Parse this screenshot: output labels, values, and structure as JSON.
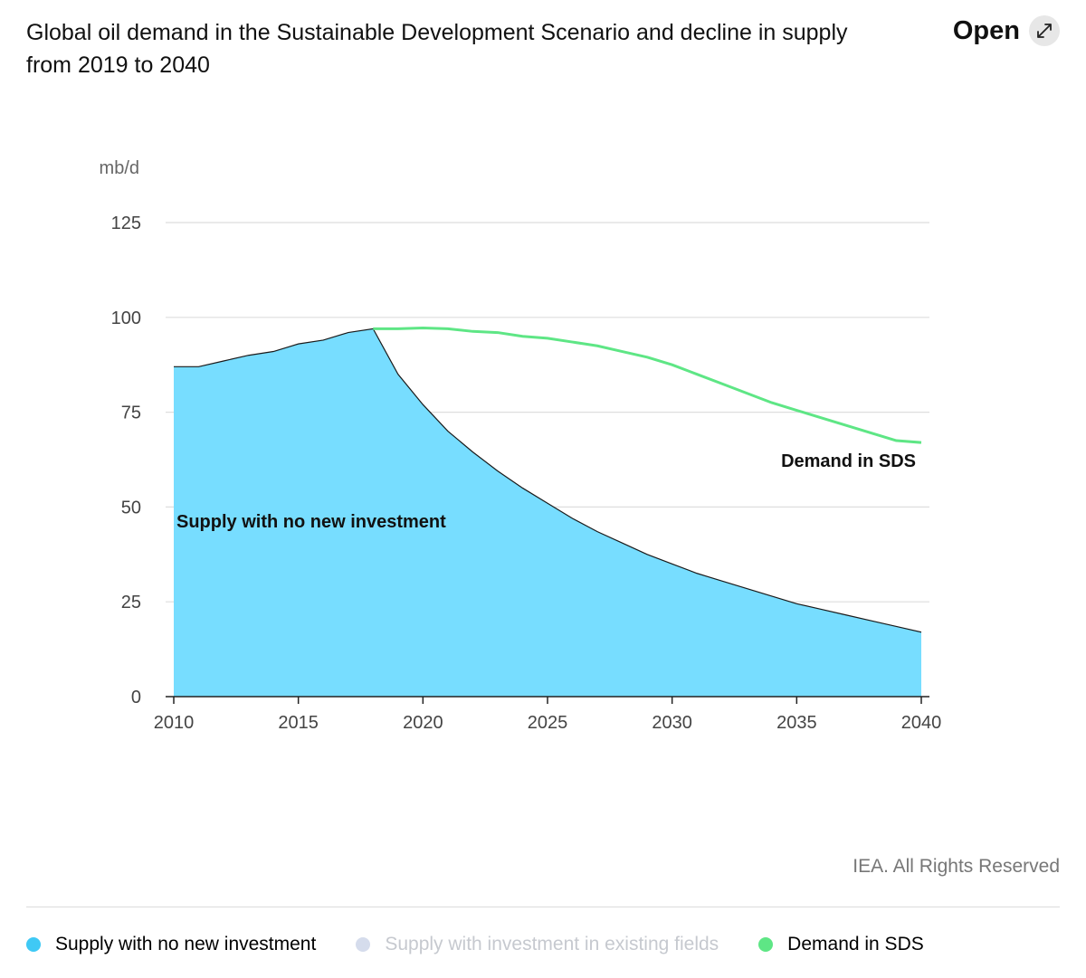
{
  "header": {
    "title": "Global oil demand in the Sustainable Development Scenario and decline in supply from 2019 to 2040",
    "open_label": "Open"
  },
  "footer": {
    "credit": "IEA. All Rights Reserved"
  },
  "legend": [
    {
      "label": "Supply with no new investment",
      "color": "#3fc9f5",
      "active": true
    },
    {
      "label": "Supply with investment in existing fields",
      "color": "#d5dcec",
      "active": false
    },
    {
      "label": "Demand in SDS",
      "color": "#5ee685",
      "active": true
    }
  ],
  "chart_data": {
    "type": "area",
    "unit_label": "mb/d",
    "xlim": [
      2010,
      2040
    ],
    "ylim": [
      0,
      125
    ],
    "x_ticks": [
      2010,
      2015,
      2020,
      2025,
      2030,
      2035,
      2040
    ],
    "y_ticks": [
      0,
      25,
      50,
      75,
      100,
      125
    ],
    "grid": true,
    "series": [
      {
        "name": "Supply with no new investment",
        "type": "area",
        "color": "#77ddff",
        "x": [
          2010,
          2011,
          2012,
          2013,
          2014,
          2015,
          2016,
          2017,
          2018,
          2019,
          2020,
          2021,
          2022,
          2023,
          2024,
          2025,
          2026,
          2027,
          2028,
          2029,
          2030,
          2031,
          2032,
          2033,
          2034,
          2035,
          2036,
          2037,
          2038,
          2039,
          2040
        ],
        "values": [
          87,
          87,
          88.5,
          90,
          91,
          93,
          94,
          96,
          97,
          85,
          77,
          70,
          64.5,
          59.5,
          55,
          51,
          47,
          43.5,
          40.5,
          37.5,
          35,
          32.5,
          30.5,
          28.5,
          26.5,
          24.5,
          23,
          21.5,
          20,
          18.5,
          17
        ]
      },
      {
        "name": "Demand in SDS",
        "type": "line",
        "color": "#5ee685",
        "x": [
          2018,
          2019,
          2020,
          2021,
          2022,
          2023,
          2024,
          2025,
          2026,
          2027,
          2028,
          2029,
          2030,
          2031,
          2032,
          2033,
          2034,
          2035,
          2036,
          2037,
          2038,
          2039,
          2040
        ],
        "values": [
          97,
          97,
          97.2,
          97,
          96.3,
          96,
          95,
          94.5,
          93.5,
          92.5,
          91,
          89.5,
          87.5,
          85,
          82.5,
          80,
          77.5,
          75.5,
          73.5,
          71.5,
          69.5,
          67.5,
          67
        ]
      }
    ],
    "annotations": [
      {
        "text": "Supply with no new investment",
        "x": 2010.1,
        "y": 45
      },
      {
        "text": "Demand in SDS",
        "x": 2024.5,
        "y": 60
      }
    ]
  }
}
